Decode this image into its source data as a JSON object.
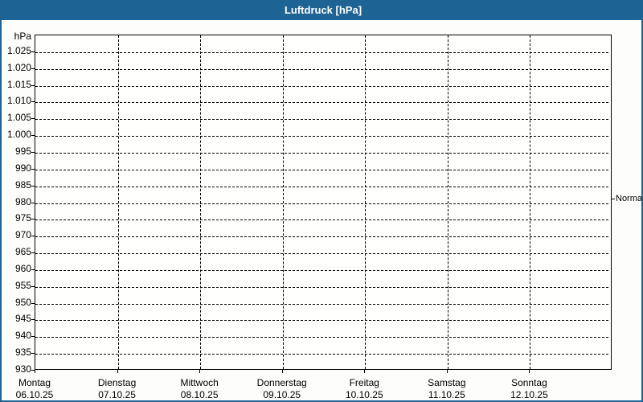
{
  "window": {
    "title": "Luftdruck [hPa]"
  },
  "colors": {
    "title_bar_bg": "#1d6394",
    "title_text": "#ffffff",
    "frame_border": "#1d6394",
    "background": "#fdfefb",
    "plot_background": "#fffffd",
    "grid_line": "#000000",
    "text": "#000000"
  },
  "chart_data": {
    "type": "line",
    "title": "Luftdruck [hPa]",
    "y_unit": "hPa",
    "ylim": [
      930,
      1030
    ],
    "ytick_step": 5,
    "grid": {
      "style": "dashed",
      "horizontal": true,
      "vertical": true
    },
    "legend_position": "none",
    "series": [],
    "yticks": [
      {
        "value": 1025,
        "label": "1.025"
      },
      {
        "value": 1020,
        "label": "1.020"
      },
      {
        "value": 1015,
        "label": "1.015"
      },
      {
        "value": 1010,
        "label": "1.010"
      },
      {
        "value": 1005,
        "label": "1.005"
      },
      {
        "value": 1000,
        "label": "1.000"
      },
      {
        "value": 995,
        "label": "995"
      },
      {
        "value": 990,
        "label": "990"
      },
      {
        "value": 985,
        "label": "985"
      },
      {
        "value": 980,
        "label": "980"
      },
      {
        "value": 975,
        "label": "975"
      },
      {
        "value": 970,
        "label": "970"
      },
      {
        "value": 965,
        "label": "965"
      },
      {
        "value": 960,
        "label": "960"
      },
      {
        "value": 955,
        "label": "955"
      },
      {
        "value": 950,
        "label": "950"
      },
      {
        "value": 945,
        "label": "945"
      },
      {
        "value": 940,
        "label": "940"
      },
      {
        "value": 935,
        "label": "935"
      },
      {
        "value": 930,
        "label": "930"
      }
    ],
    "x_days": [
      {
        "name": "Montag",
        "date": "06.10.25"
      },
      {
        "name": "Dienstag",
        "date": "07.10.25"
      },
      {
        "name": "Mittwoch",
        "date": "08.10.25"
      },
      {
        "name": "Donnerstag",
        "date": "09.10.25"
      },
      {
        "name": "Freitag",
        "date": "10.10.25"
      },
      {
        "name": "Samstag",
        "date": "11.10.25"
      },
      {
        "name": "Sonntag",
        "date": "12.10.25"
      }
    ],
    "annotations": [
      {
        "label": "Normal",
        "value": 981,
        "side": "right"
      }
    ]
  }
}
